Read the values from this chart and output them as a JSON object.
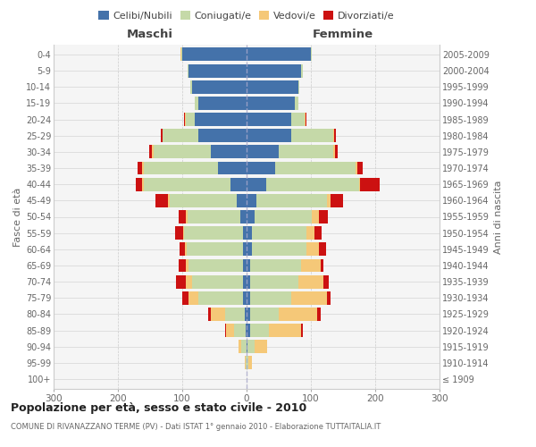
{
  "age_groups": [
    "100+",
    "95-99",
    "90-94",
    "85-89",
    "80-84",
    "75-79",
    "70-74",
    "65-69",
    "60-64",
    "55-59",
    "50-54",
    "45-49",
    "40-44",
    "35-39",
    "30-34",
    "25-29",
    "20-24",
    "15-19",
    "10-14",
    "5-9",
    "0-4"
  ],
  "birth_years": [
    "≤ 1909",
    "1910-1914",
    "1915-1919",
    "1920-1924",
    "1925-1929",
    "1930-1934",
    "1935-1939",
    "1940-1944",
    "1945-1949",
    "1950-1954",
    "1955-1959",
    "1960-1964",
    "1965-1969",
    "1970-1974",
    "1975-1979",
    "1980-1984",
    "1985-1989",
    "1990-1994",
    "1995-1999",
    "2000-2004",
    "2005-2009"
  ],
  "maschi": {
    "celibi": [
      0,
      0,
      0,
      2,
      3,
      5,
      5,
      5,
      5,
      5,
      10,
      15,
      25,
      45,
      55,
      75,
      80,
      75,
      85,
      90,
      100
    ],
    "coniugati": [
      0,
      2,
      8,
      18,
      30,
      70,
      80,
      85,
      88,
      92,
      82,
      105,
      135,
      115,
      90,
      55,
      15,
      5,
      2,
      2,
      2
    ],
    "vedovi": [
      0,
      1,
      5,
      12,
      22,
      15,
      10,
      5,
      3,
      2,
      2,
      2,
      2,
      2,
      2,
      1,
      1,
      0,
      0,
      0,
      1
    ],
    "divorziati": [
      0,
      0,
      0,
      2,
      5,
      10,
      15,
      10,
      8,
      12,
      12,
      20,
      10,
      8,
      5,
      2,
      1,
      0,
      0,
      0,
      0
    ]
  },
  "femmine": {
    "nubili": [
      0,
      0,
      2,
      5,
      5,
      5,
      5,
      5,
      8,
      8,
      12,
      15,
      30,
      45,
      50,
      70,
      70,
      75,
      80,
      85,
      100
    ],
    "coniugate": [
      0,
      3,
      10,
      30,
      45,
      65,
      75,
      80,
      85,
      85,
      90,
      110,
      145,
      125,
      85,
      65,
      20,
      5,
      2,
      2,
      2
    ],
    "vedove": [
      0,
      5,
      20,
      50,
      60,
      55,
      40,
      30,
      20,
      12,
      10,
      5,
      2,
      2,
      2,
      1,
      1,
      0,
      0,
      0,
      0
    ],
    "divorziate": [
      0,
      0,
      0,
      2,
      5,
      5,
      8,
      5,
      10,
      12,
      15,
      20,
      30,
      8,
      5,
      3,
      2,
      0,
      0,
      0,
      0
    ]
  },
  "colors": {
    "celibi_nubili": "#4472aa",
    "coniugati": "#c5d9a8",
    "vedovi": "#f5c878",
    "divorziati": "#cc1111"
  },
  "xlim": 300,
  "title": "Popolazione per età, sesso e stato civile - 2010",
  "subtitle": "COMUNE DI RIVANAZZANO TERME (PV) - Dati ISTAT 1° gennaio 2010 - Elaborazione TUTTAITALIA.IT",
  "ylabel": "Fasce di età",
  "right_ylabel": "Anni di nascita",
  "xlabel_left": "Maschi",
  "xlabel_right": "Femmine"
}
